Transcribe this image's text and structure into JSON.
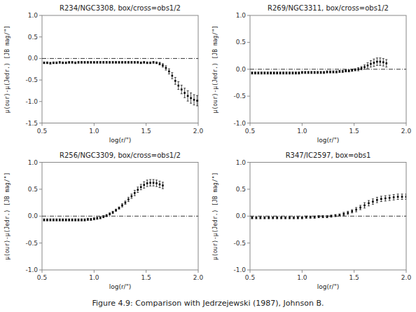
{
  "title": "Figure 4.9: Comparison with Jedrzejewski (1987), Johnson B.",
  "chart_data": [
    {
      "type": "scatter",
      "title": "R234/NGC3308, box/cross=obs1/2",
      "xlabel": "log(r/\")",
      "ylabel": "μ(our)-μ(Jedr.) [JB mag/\"]",
      "color": "black",
      "marker": "square",
      "hline": 0,
      "xlim": [
        0.5,
        2.0
      ],
      "ylim": [
        -1.5,
        1.0
      ],
      "xticks": [
        0.5,
        {
          "value": 1.0,
          "label": "1.0"
        },
        1.5,
        {
          "value": 2.0,
          "label": "2.0"
        }
      ],
      "yticks": [
        -1.5,
        {
          "value": -1.0,
          "label": "-1.0"
        },
        -0.5,
        {
          "value": 0.0,
          "label": "0.0"
        },
        0.5,
        {
          "value": 1.0,
          "label": "1.0"
        }
      ],
      "x": [
        0.52,
        0.55,
        0.58,
        0.61,
        0.64,
        0.67,
        0.7,
        0.73,
        0.76,
        0.79,
        0.82,
        0.85,
        0.88,
        0.91,
        0.94,
        0.97,
        1.0,
        1.03,
        1.06,
        1.09,
        1.12,
        1.15,
        1.18,
        1.21,
        1.24,
        1.27,
        1.3,
        1.33,
        1.36,
        1.39,
        1.42,
        1.45,
        1.48,
        1.51,
        1.54,
        1.57,
        1.6,
        1.63,
        1.66,
        1.69,
        1.72,
        1.75,
        1.78,
        1.81,
        1.84,
        1.87,
        1.9,
        1.93,
        1.96,
        1.99
      ],
      "values": [
        -0.1,
        -0.1,
        -0.11,
        -0.1,
        -0.1,
        -0.09,
        -0.1,
        -0.1,
        -0.09,
        -0.09,
        -0.1,
        -0.09,
        -0.09,
        -0.09,
        -0.09,
        -0.09,
        -0.09,
        -0.09,
        -0.09,
        -0.09,
        -0.09,
        -0.09,
        -0.09,
        -0.09,
        -0.09,
        -0.09,
        -0.09,
        -0.09,
        -0.09,
        -0.09,
        -0.09,
        -0.1,
        -0.09,
        -0.1,
        -0.1,
        -0.09,
        -0.1,
        -0.12,
        -0.16,
        -0.22,
        -0.3,
        -0.4,
        -0.52,
        -0.63,
        -0.72,
        -0.8,
        -0.87,
        -0.92,
        -0.96,
        -0.98
      ],
      "yerr": [
        0.02,
        0.02,
        0.02,
        0.02,
        0.02,
        0.02,
        0.02,
        0.02,
        0.02,
        0.02,
        0.02,
        0.02,
        0.02,
        0.02,
        0.02,
        0.02,
        0.02,
        0.02,
        0.02,
        0.02,
        0.02,
        0.02,
        0.02,
        0.02,
        0.02,
        0.02,
        0.02,
        0.02,
        0.02,
        0.02,
        0.02,
        0.02,
        0.02,
        0.02,
        0.02,
        0.02,
        0.02,
        0.03,
        0.04,
        0.05,
        0.06,
        0.07,
        0.08,
        0.09,
        0.1,
        0.11,
        0.12,
        0.12,
        0.12,
        0.12
      ]
    },
    {
      "type": "scatter",
      "title": "R269/NGC3311, box/cross=obs1/2",
      "xlabel": "log(r/\")",
      "ylabel": "μ(our)-μ(Jedr.) [JB mag/\"]",
      "color": "black",
      "marker": "square",
      "hline": 0,
      "xlim": [
        0.5,
        2.0
      ],
      "ylim": [
        -1.0,
        1.0
      ],
      "xticks": [
        0.5,
        {
          "value": 1.0,
          "label": "1.0"
        },
        1.5,
        {
          "value": 2.0,
          "label": "2.0"
        }
      ],
      "yticks": [
        {
          "value": -1.0,
          "label": "-1.0"
        },
        -0.5,
        {
          "value": 0.0,
          "label": "0.0"
        },
        0.5,
        {
          "value": 1.0,
          "label": "1.0"
        }
      ],
      "x": [
        0.52,
        0.55,
        0.58,
        0.61,
        0.64,
        0.67,
        0.7,
        0.73,
        0.76,
        0.79,
        0.82,
        0.85,
        0.88,
        0.91,
        0.94,
        0.97,
        1.0,
        1.03,
        1.06,
        1.09,
        1.12,
        1.15,
        1.18,
        1.21,
        1.24,
        1.27,
        1.3,
        1.33,
        1.36,
        1.39,
        1.42,
        1.45,
        1.48,
        1.51,
        1.54,
        1.57,
        1.6,
        1.63,
        1.66,
        1.69,
        1.72,
        1.75,
        1.78,
        1.81
      ],
      "values": [
        -0.07,
        -0.07,
        -0.07,
        -0.07,
        -0.07,
        -0.07,
        -0.07,
        -0.07,
        -0.07,
        -0.07,
        -0.07,
        -0.07,
        -0.07,
        -0.07,
        -0.07,
        -0.07,
        -0.06,
        -0.06,
        -0.06,
        -0.06,
        -0.06,
        -0.06,
        -0.06,
        -0.06,
        -0.05,
        -0.05,
        -0.05,
        -0.05,
        -0.04,
        -0.04,
        -0.03,
        -0.03,
        -0.02,
        -0.01,
        0.0,
        0.02,
        0.04,
        0.07,
        0.1,
        0.12,
        0.14,
        0.14,
        0.13,
        0.11
      ],
      "yerr": [
        0.02,
        0.02,
        0.02,
        0.02,
        0.02,
        0.02,
        0.02,
        0.02,
        0.02,
        0.02,
        0.02,
        0.02,
        0.02,
        0.02,
        0.02,
        0.02,
        0.02,
        0.02,
        0.02,
        0.02,
        0.02,
        0.02,
        0.02,
        0.02,
        0.02,
        0.02,
        0.02,
        0.02,
        0.02,
        0.02,
        0.02,
        0.02,
        0.02,
        0.02,
        0.03,
        0.03,
        0.04,
        0.05,
        0.06,
        0.07,
        0.07,
        0.07,
        0.07,
        0.07
      ]
    },
    {
      "type": "scatter",
      "title": "R256/NGC3309, box/cross=obs1/2",
      "xlabel": "log(r/\")",
      "ylabel": "μ(our)-μ(Jedr.) [JB mag/\"]",
      "color": "black",
      "marker": "square",
      "hline": 0,
      "xlim": [
        0.5,
        2.0
      ],
      "ylim": [
        -1.0,
        1.0
      ],
      "xticks": [
        0.5,
        {
          "value": 1.0,
          "label": "1.0"
        },
        1.5,
        {
          "value": 2.0,
          "label": "2.0"
        }
      ],
      "yticks": [
        {
          "value": -1.0,
          "label": "-1.0"
        },
        -0.5,
        {
          "value": 0.0,
          "label": "0.0"
        },
        0.5,
        {
          "value": 1.0,
          "label": "1.0"
        }
      ],
      "x": [
        0.52,
        0.55,
        0.58,
        0.61,
        0.64,
        0.67,
        0.7,
        0.73,
        0.76,
        0.79,
        0.82,
        0.85,
        0.88,
        0.91,
        0.94,
        0.97,
        1.0,
        1.03,
        1.06,
        1.09,
        1.12,
        1.15,
        1.18,
        1.21,
        1.24,
        1.27,
        1.3,
        1.33,
        1.36,
        1.39,
        1.42,
        1.45,
        1.48,
        1.51,
        1.54,
        1.57,
        1.6,
        1.63,
        1.66
      ],
      "values": [
        -0.07,
        -0.07,
        -0.07,
        -0.07,
        -0.07,
        -0.07,
        -0.07,
        -0.07,
        -0.07,
        -0.07,
        -0.07,
        -0.07,
        -0.07,
        -0.07,
        -0.06,
        -0.06,
        -0.05,
        -0.04,
        -0.03,
        -0.01,
        0.01,
        0.04,
        0.07,
        0.11,
        0.15,
        0.2,
        0.25,
        0.31,
        0.37,
        0.43,
        0.49,
        0.54,
        0.58,
        0.61,
        0.62,
        0.62,
        0.61,
        0.59,
        0.57
      ],
      "yerr": [
        0.02,
        0.02,
        0.02,
        0.02,
        0.02,
        0.02,
        0.02,
        0.02,
        0.02,
        0.02,
        0.02,
        0.02,
        0.02,
        0.02,
        0.02,
        0.02,
        0.02,
        0.02,
        0.02,
        0.02,
        0.02,
        0.02,
        0.02,
        0.02,
        0.02,
        0.03,
        0.03,
        0.04,
        0.04,
        0.05,
        0.05,
        0.05,
        0.06,
        0.06,
        0.06,
        0.06,
        0.06,
        0.06,
        0.06
      ]
    },
    {
      "type": "scatter",
      "title": "R347/IC2597, box=obs1",
      "xlabel": "log(r/\")",
      "ylabel": "μ(our)-μ(Jedr.) [JB mag/\"]",
      "color": "black",
      "marker": "square",
      "hline": 0,
      "xlim": [
        0.5,
        2.0
      ],
      "ylim": [
        -1.0,
        1.0
      ],
      "xticks": [
        0.5,
        {
          "value": 1.0,
          "label": "1.0"
        },
        1.5,
        {
          "value": 2.0,
          "label": "2.0"
        }
      ],
      "yticks": [
        {
          "value": -1.0,
          "label": "-1.0"
        },
        -0.5,
        {
          "value": 0.0,
          "label": "0.0"
        },
        0.5,
        {
          "value": 1.0,
          "label": "1.0"
        }
      ],
      "x": [
        0.52,
        0.56,
        0.6,
        0.64,
        0.68,
        0.72,
        0.76,
        0.8,
        0.84,
        0.88,
        0.92,
        0.96,
        1.0,
        1.04,
        1.08,
        1.12,
        1.16,
        1.2,
        1.24,
        1.28,
        1.32,
        1.36,
        1.4,
        1.44,
        1.48,
        1.52,
        1.56,
        1.6,
        1.64,
        1.68,
        1.72,
        1.76,
        1.8,
        1.84,
        1.88,
        1.92,
        1.96,
        2.0
      ],
      "values": [
        -0.03,
        -0.03,
        -0.03,
        -0.03,
        -0.03,
        -0.03,
        -0.03,
        -0.03,
        -0.03,
        -0.03,
        -0.03,
        -0.03,
        -0.03,
        -0.02,
        -0.02,
        -0.02,
        -0.01,
        -0.01,
        -0.01,
        0.0,
        0.01,
        0.02,
        0.04,
        0.06,
        0.09,
        0.12,
        0.16,
        0.2,
        0.24,
        0.27,
        0.3,
        0.32,
        0.33,
        0.34,
        0.35,
        0.36,
        0.36,
        0.36
      ],
      "yerr": [
        0.02,
        0.02,
        0.02,
        0.02,
        0.02,
        0.02,
        0.02,
        0.02,
        0.02,
        0.02,
        0.02,
        0.02,
        0.02,
        0.02,
        0.02,
        0.02,
        0.02,
        0.02,
        0.02,
        0.02,
        0.02,
        0.02,
        0.03,
        0.03,
        0.03,
        0.04,
        0.04,
        0.05,
        0.05,
        0.05,
        0.05,
        0.05,
        0.05,
        0.05,
        0.05,
        0.05,
        0.05,
        0.05
      ]
    }
  ]
}
